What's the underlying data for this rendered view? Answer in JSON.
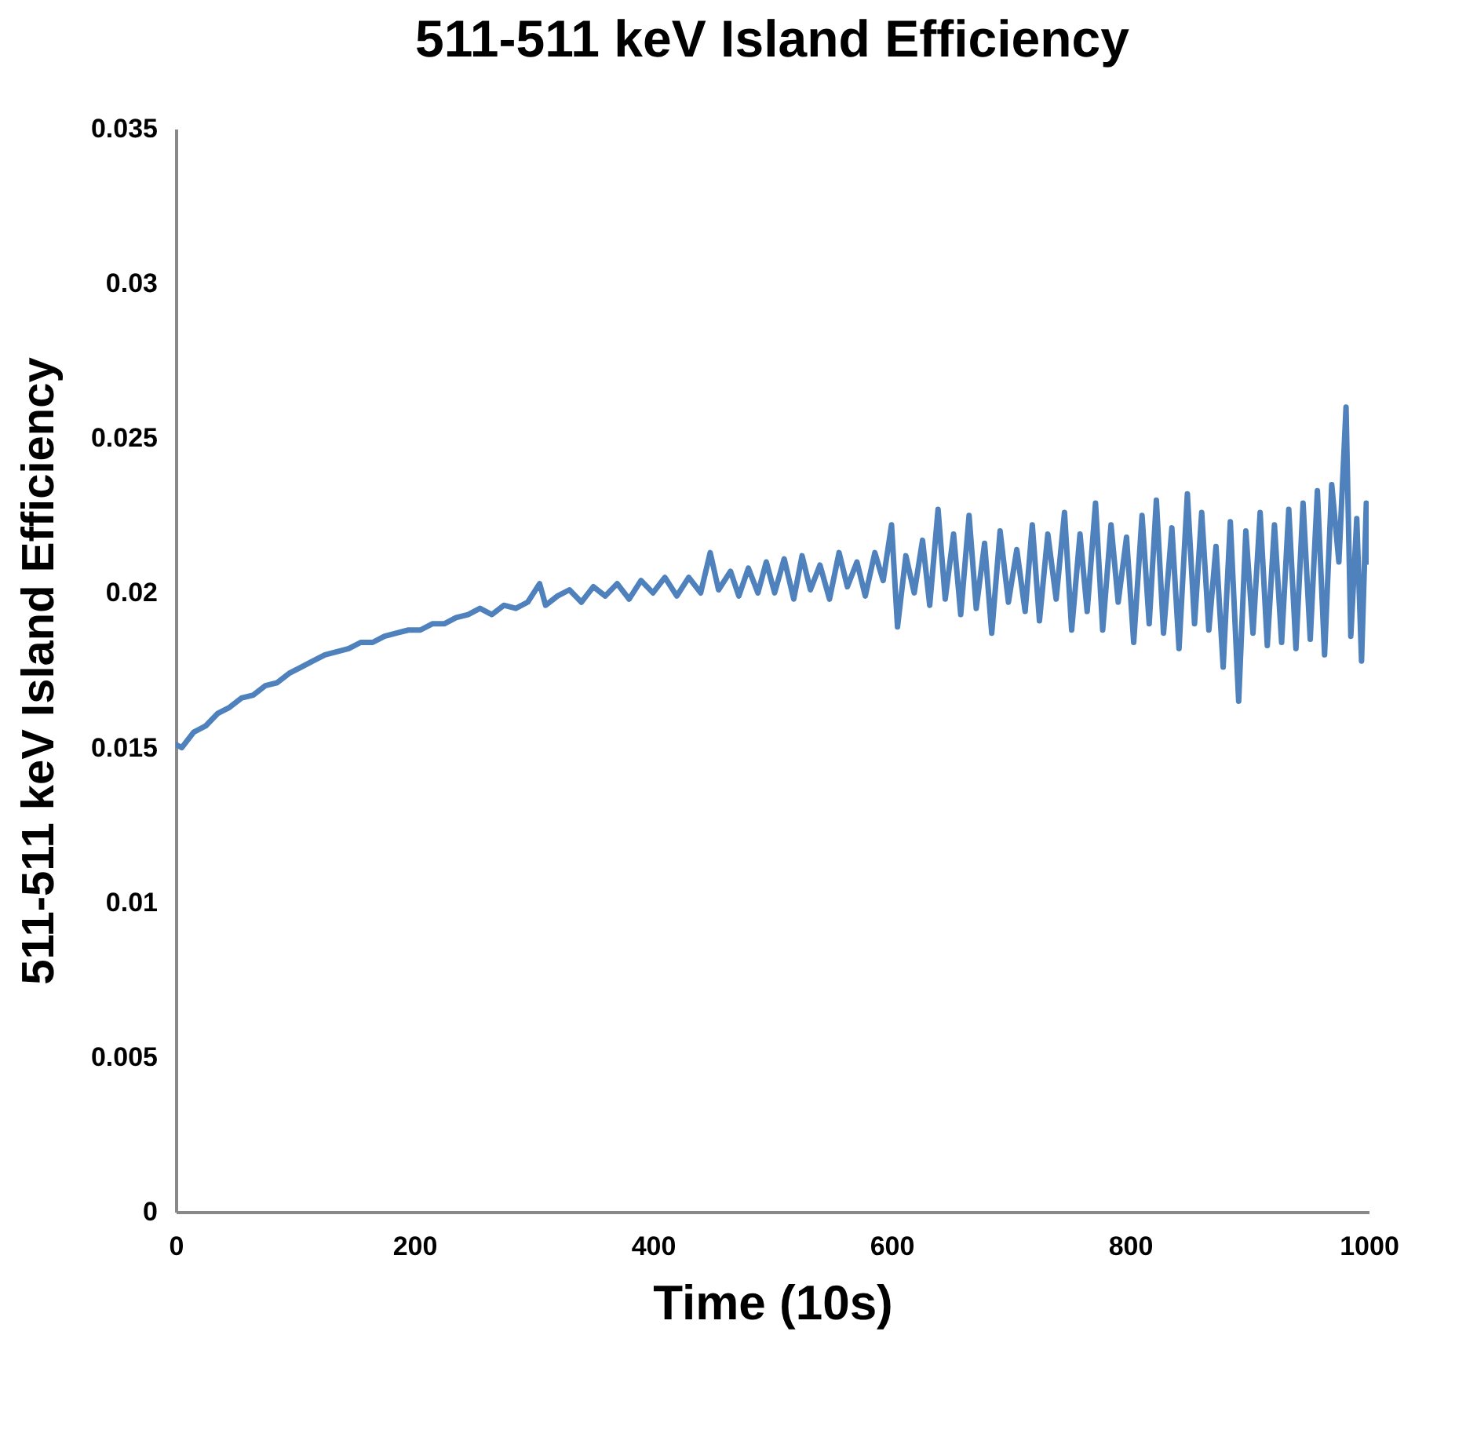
{
  "chart_data": {
    "type": "line",
    "title": "511-511 keV Island Efficiency",
    "xlabel": "Time (10s)",
    "ylabel": "511-511 keV Island Efficiency",
    "x": [
      0,
      5,
      15,
      25,
      35,
      45,
      55,
      65,
      75,
      85,
      95,
      105,
      115,
      125,
      135,
      145,
      155,
      165,
      175,
      185,
      195,
      205,
      215,
      225,
      235,
      245,
      255,
      265,
      275,
      285,
      295,
      305,
      310,
      320,
      330,
      340,
      350,
      360,
      370,
      380,
      390,
      400,
      410,
      420,
      430,
      440,
      448,
      455,
      465,
      472,
      480,
      488,
      495,
      502,
      510,
      518,
      525,
      532,
      540,
      548,
      556,
      563,
      571,
      578,
      586,
      593,
      600,
      605,
      612,
      619,
      626,
      632,
      639,
      645,
      652,
      658,
      665,
      671,
      678,
      684,
      691,
      698,
      705,
      712,
      718,
      724,
      731,
      738,
      745,
      751,
      758,
      764,
      771,
      777,
      784,
      790,
      797,
      803,
      810,
      816,
      822,
      828,
      835,
      841,
      848,
      854,
      860,
      866,
      872,
      878,
      884,
      891,
      897,
      903,
      909,
      915,
      921,
      927,
      933,
      939,
      945,
      951,
      957,
      963,
      969,
      975,
      981,
      985,
      990,
      994,
      998,
      1000
    ],
    "series": [
      {
        "color": "#4f81bd",
        "values": [
          0.0151,
          0.015,
          0.0155,
          0.0157,
          0.0161,
          0.0163,
          0.0166,
          0.0167,
          0.017,
          0.0171,
          0.0174,
          0.0176,
          0.0178,
          0.018,
          0.0181,
          0.0182,
          0.0184,
          0.0184,
          0.0186,
          0.0187,
          0.0188,
          0.0188,
          0.019,
          0.019,
          0.0192,
          0.0193,
          0.0195,
          0.0193,
          0.0196,
          0.0195,
          0.0197,
          0.0203,
          0.0196,
          0.0199,
          0.0201,
          0.0197,
          0.0202,
          0.0199,
          0.0203,
          0.0198,
          0.0204,
          0.02,
          0.0205,
          0.0199,
          0.0205,
          0.02,
          0.0213,
          0.0201,
          0.0207,
          0.0199,
          0.0208,
          0.02,
          0.021,
          0.02,
          0.0211,
          0.0198,
          0.0212,
          0.0201,
          0.0209,
          0.0198,
          0.0213,
          0.0202,
          0.021,
          0.0199,
          0.0213,
          0.0204,
          0.0222,
          0.0189,
          0.0212,
          0.02,
          0.0217,
          0.0196,
          0.0227,
          0.0198,
          0.0219,
          0.0193,
          0.0225,
          0.0195,
          0.0216,
          0.0187,
          0.022,
          0.0197,
          0.0214,
          0.0194,
          0.0222,
          0.0191,
          0.0219,
          0.0198,
          0.0226,
          0.0188,
          0.0219,
          0.0194,
          0.0229,
          0.0188,
          0.0222,
          0.0197,
          0.0218,
          0.0184,
          0.0225,
          0.019,
          0.023,
          0.0187,
          0.0221,
          0.0182,
          0.0232,
          0.019,
          0.0226,
          0.0188,
          0.0215,
          0.0176,
          0.0223,
          0.0165,
          0.022,
          0.0187,
          0.0226,
          0.0183,
          0.0222,
          0.0184,
          0.0227,
          0.0182,
          0.0229,
          0.0185,
          0.0233,
          0.018,
          0.0235,
          0.021,
          0.026,
          0.0186,
          0.0224,
          0.0178,
          0.0229,
          0.021
        ]
      }
    ],
    "xlim": [
      0,
      1000
    ],
    "xticks": [
      0,
      200,
      400,
      600,
      800,
      1000
    ],
    "ylim": [
      0,
      0.035
    ],
    "yticks": [
      0,
      0.005,
      0.01,
      0.015,
      0.02,
      0.025,
      0.03,
      0.035
    ],
    "grid": false,
    "marker": "none",
    "line_style": "solid"
  }
}
